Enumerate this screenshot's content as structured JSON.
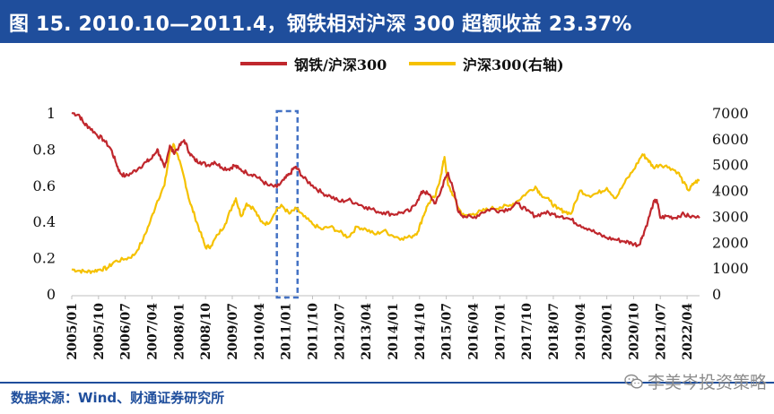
{
  "header": {
    "title": "图 15. 2010.10—2011.4，钢铁相对沪深 300 超额收益 23.37%"
  },
  "legend": {
    "series1": "钢铁/沪深300",
    "series2": "沪深300(右轴)"
  },
  "footer": {
    "source": "数据来源：Wind、财通证券研究所",
    "watermark": "李美岑投资策略"
  },
  "colors": {
    "brand": "#1f4e9c",
    "series1": "#c0272d",
    "series2": "#f5c100",
    "highlight": "#4472c4"
  },
  "chart_data": {
    "type": "line",
    "title": "图 15. 2010.10—2011.4，钢铁相对沪深 300 超额收益 23.37%",
    "x_start": 2005.0,
    "x_end": 2022.6,
    "y_left": {
      "min": 0,
      "max": 1,
      "ticks": [
        "0",
        "0.2",
        "0.4",
        "0.6",
        "0.8",
        "1"
      ]
    },
    "y_right": {
      "min": 0,
      "max": 7000,
      "ticks": [
        "0",
        "1000",
        "2000",
        "3000",
        "4000",
        "5000",
        "6000",
        "7000"
      ]
    },
    "x_ticks": [
      {
        "t": 2005.0,
        "label": "2005/01"
      },
      {
        "t": 2005.75,
        "label": "2005/10"
      },
      {
        "t": 2006.5,
        "label": "2006/07"
      },
      {
        "t": 2007.25,
        "label": "2007/04"
      },
      {
        "t": 2008.0,
        "label": "2008/01"
      },
      {
        "t": 2008.75,
        "label": "2008/10"
      },
      {
        "t": 2009.5,
        "label": "2009/07"
      },
      {
        "t": 2010.25,
        "label": "2010/04"
      },
      {
        "t": 2011.0,
        "label": "2011/01"
      },
      {
        "t": 2011.75,
        "label": "2011/10"
      },
      {
        "t": 2012.5,
        "label": "2012/07"
      },
      {
        "t": 2013.25,
        "label": "2013/04"
      },
      {
        "t": 2014.0,
        "label": "2014/01"
      },
      {
        "t": 2014.75,
        "label": "2014/10"
      },
      {
        "t": 2015.5,
        "label": "2015/07"
      },
      {
        "t": 2016.25,
        "label": "2016/04"
      },
      {
        "t": 2017.0,
        "label": "2017/01"
      },
      {
        "t": 2017.75,
        "label": "2017/10"
      },
      {
        "t": 2018.5,
        "label": "2018/07"
      },
      {
        "t": 2019.25,
        "label": "2019/04"
      },
      {
        "t": 2020.0,
        "label": "2020/01"
      },
      {
        "t": 2020.75,
        "label": "2020/10"
      },
      {
        "t": 2021.5,
        "label": "2021/07"
      },
      {
        "t": 2022.25,
        "label": "2022/04"
      }
    ],
    "highlight": {
      "from": 2010.75,
      "to": 2011.33,
      "label": "2010.10—2011.4"
    },
    "series": [
      {
        "name": "钢铁/沪深300",
        "axis": "left",
        "points": [
          [
            2005.0,
            1.0
          ],
          [
            2005.2,
            0.99
          ],
          [
            2005.35,
            0.94
          ],
          [
            2005.5,
            0.92
          ],
          [
            2005.7,
            0.88
          ],
          [
            2005.9,
            0.85
          ],
          [
            2006.1,
            0.8
          ],
          [
            2006.25,
            0.72
          ],
          [
            2006.35,
            0.67
          ],
          [
            2006.5,
            0.65
          ],
          [
            2006.7,
            0.67
          ],
          [
            2006.9,
            0.7
          ],
          [
            2007.1,
            0.73
          ],
          [
            2007.25,
            0.75
          ],
          [
            2007.4,
            0.8
          ],
          [
            2007.5,
            0.74
          ],
          [
            2007.6,
            0.7
          ],
          [
            2007.75,
            0.82
          ],
          [
            2007.85,
            0.78
          ],
          [
            2008.0,
            0.81
          ],
          [
            2008.15,
            0.85
          ],
          [
            2008.3,
            0.78
          ],
          [
            2008.45,
            0.74
          ],
          [
            2008.6,
            0.73
          ],
          [
            2008.8,
            0.71
          ],
          [
            2009.0,
            0.73
          ],
          [
            2009.2,
            0.7
          ],
          [
            2009.4,
            0.69
          ],
          [
            2009.55,
            0.71
          ],
          [
            2009.7,
            0.69
          ],
          [
            2009.9,
            0.67
          ],
          [
            2010.1,
            0.66
          ],
          [
            2010.3,
            0.63
          ],
          [
            2010.5,
            0.6
          ],
          [
            2010.75,
            0.59
          ],
          [
            2010.95,
            0.63
          ],
          [
            2011.1,
            0.66
          ],
          [
            2011.25,
            0.7
          ],
          [
            2011.33,
            0.69
          ],
          [
            2011.5,
            0.64
          ],
          [
            2011.75,
            0.6
          ],
          [
            2012.0,
            0.56
          ],
          [
            2012.25,
            0.54
          ],
          [
            2012.5,
            0.51
          ],
          [
            2012.75,
            0.52
          ],
          [
            2013.0,
            0.5
          ],
          [
            2013.25,
            0.48
          ],
          [
            2013.5,
            0.46
          ],
          [
            2013.75,
            0.45
          ],
          [
            2014.0,
            0.44
          ],
          [
            2014.25,
            0.45
          ],
          [
            2014.5,
            0.46
          ],
          [
            2014.7,
            0.52
          ],
          [
            2014.85,
            0.57
          ],
          [
            2015.0,
            0.55
          ],
          [
            2015.2,
            0.5
          ],
          [
            2015.35,
            0.57
          ],
          [
            2015.45,
            0.63
          ],
          [
            2015.55,
            0.67
          ],
          [
            2015.7,
            0.57
          ],
          [
            2015.85,
            0.45
          ],
          [
            2016.0,
            0.43
          ],
          [
            2016.25,
            0.42
          ],
          [
            2016.5,
            0.45
          ],
          [
            2016.75,
            0.47
          ],
          [
            2017.0,
            0.46
          ],
          [
            2017.25,
            0.47
          ],
          [
            2017.5,
            0.5
          ],
          [
            2017.75,
            0.46
          ],
          [
            2018.0,
            0.43
          ],
          [
            2018.25,
            0.45
          ],
          [
            2018.5,
            0.44
          ],
          [
            2018.75,
            0.43
          ],
          [
            2019.0,
            0.41
          ],
          [
            2019.25,
            0.38
          ],
          [
            2019.5,
            0.36
          ],
          [
            2019.75,
            0.33
          ],
          [
            2020.0,
            0.31
          ],
          [
            2020.25,
            0.3
          ],
          [
            2020.5,
            0.29
          ],
          [
            2020.7,
            0.28
          ],
          [
            2020.9,
            0.27
          ],
          [
            2021.0,
            0.32
          ],
          [
            2021.15,
            0.4
          ],
          [
            2021.3,
            0.5
          ],
          [
            2021.4,
            0.52
          ],
          [
            2021.5,
            0.42
          ],
          [
            2021.7,
            0.43
          ],
          [
            2021.9,
            0.42
          ],
          [
            2022.1,
            0.44
          ],
          [
            2022.3,
            0.43
          ],
          [
            2022.6,
            0.42
          ]
        ]
      },
      {
        "name": "沪深300(右轴)",
        "axis": "right",
        "points": [
          [
            2005.0,
            950
          ],
          [
            2005.2,
            900
          ],
          [
            2005.4,
            860
          ],
          [
            2005.6,
            880
          ],
          [
            2005.8,
            950
          ],
          [
            2006.0,
            1000
          ],
          [
            2006.2,
            1250
          ],
          [
            2006.5,
            1350
          ],
          [
            2006.75,
            1500
          ],
          [
            2007.0,
            2100
          ],
          [
            2007.2,
            2800
          ],
          [
            2007.4,
            3600
          ],
          [
            2007.6,
            4200
          ],
          [
            2007.75,
            5500
          ],
          [
            2007.85,
            5800
          ],
          [
            2008.0,
            5200
          ],
          [
            2008.15,
            4500
          ],
          [
            2008.3,
            3600
          ],
          [
            2008.45,
            3000
          ],
          [
            2008.6,
            2400
          ],
          [
            2008.75,
            1800
          ],
          [
            2008.9,
            1850
          ],
          [
            2009.1,
            2300
          ],
          [
            2009.3,
            2700
          ],
          [
            2009.5,
            3400
          ],
          [
            2009.6,
            3700
          ],
          [
            2009.75,
            3000
          ],
          [
            2009.9,
            3500
          ],
          [
            2010.1,
            3300
          ],
          [
            2010.3,
            2800
          ],
          [
            2010.5,
            2700
          ],
          [
            2010.75,
            3300
          ],
          [
            2010.9,
            3400
          ],
          [
            2011.1,
            3100
          ],
          [
            2011.3,
            3300
          ],
          [
            2011.5,
            3000
          ],
          [
            2011.75,
            2700
          ],
          [
            2012.0,
            2500
          ],
          [
            2012.25,
            2600
          ],
          [
            2012.5,
            2400
          ],
          [
            2012.75,
            2200
          ],
          [
            2013.0,
            2600
          ],
          [
            2013.25,
            2500
          ],
          [
            2013.5,
            2300
          ],
          [
            2013.75,
            2450
          ],
          [
            2014.0,
            2250
          ],
          [
            2014.25,
            2150
          ],
          [
            2014.5,
            2200
          ],
          [
            2014.7,
            2400
          ],
          [
            2014.85,
            3000
          ],
          [
            2015.0,
            3500
          ],
          [
            2015.2,
            3800
          ],
          [
            2015.35,
            4600
          ],
          [
            2015.45,
            5300
          ],
          [
            2015.55,
            4200
          ],
          [
            2015.7,
            3800
          ],
          [
            2015.85,
            3300
          ],
          [
            2016.0,
            3000
          ],
          [
            2016.25,
            3100
          ],
          [
            2016.5,
            3200
          ],
          [
            2016.75,
            3300
          ],
          [
            2017.0,
            3350
          ],
          [
            2017.25,
            3400
          ],
          [
            2017.5,
            3600
          ],
          [
            2017.75,
            3900
          ],
          [
            2018.0,
            4150
          ],
          [
            2018.15,
            3850
          ],
          [
            2018.4,
            3600
          ],
          [
            2018.6,
            3300
          ],
          [
            2018.8,
            3200
          ],
          [
            2019.0,
            3100
          ],
          [
            2019.25,
            4000
          ],
          [
            2019.5,
            3800
          ],
          [
            2019.75,
            3900
          ],
          [
            2020.0,
            4100
          ],
          [
            2020.25,
            3700
          ],
          [
            2020.5,
            4300
          ],
          [
            2020.75,
            4800
          ],
          [
            2021.0,
            5400
          ],
          [
            2021.15,
            5200
          ],
          [
            2021.3,
            4900
          ],
          [
            2021.5,
            5000
          ],
          [
            2021.75,
            4900
          ],
          [
            2022.0,
            4700
          ],
          [
            2022.15,
            4300
          ],
          [
            2022.3,
            4000
          ],
          [
            2022.45,
            4300
          ],
          [
            2022.6,
            4400
          ]
        ]
      }
    ]
  }
}
